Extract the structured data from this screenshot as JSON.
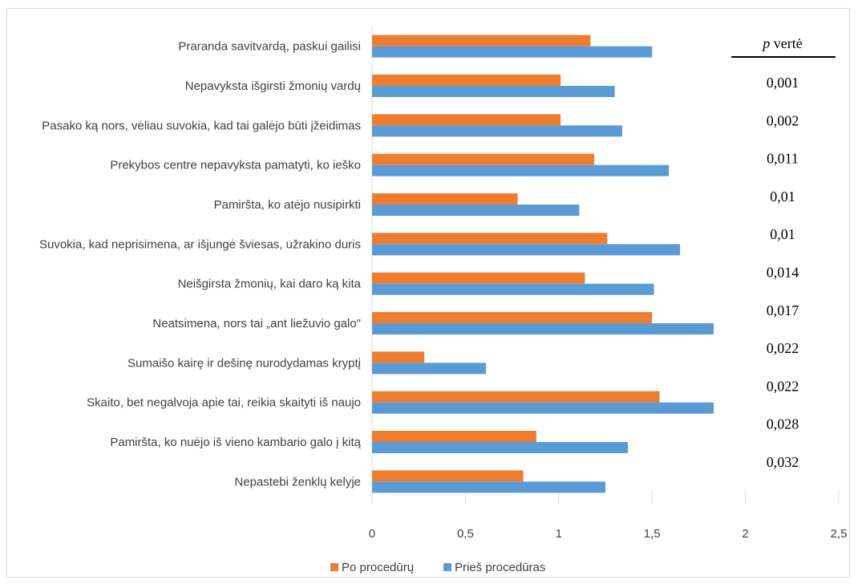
{
  "chart_data": {
    "type": "bar",
    "orientation": "horizontal",
    "categories": [
      "Praranda savitvardą, paskui gailisi",
      "Nepavyksta išgirsti žmonių vardų",
      "Pasako ką nors, vėliau suvokia, kad tai galėjo būti įžeidimas",
      "Prekybos centre nepavyksta pamatyti, ko ieško",
      "Pamiršta, ko atėjo nusipirkti",
      "Suvokia, kad neprisimena, ar išjungė šviesas, užrakino duris",
      "Neišgirsta žmonių, kai daro ką kita",
      "Neatsimena, nors tai „ant liežuvio galo\"",
      "Sumaišo kairę ir dešinę nurodydamas kryptį",
      "Skaito, bet negalvoja apie tai, reikia skaityti iš naujo",
      "Pamiršta, ko nuėjo iš vieno kambario galo į kitą",
      "Nepastebi ženklų kelyje"
    ],
    "series": [
      {
        "name": "Po procedūrų",
        "color": "#ED7D31",
        "values": [
          1.17,
          1.01,
          1.01,
          1.19,
          0.78,
          1.26,
          1.14,
          1.5,
          0.28,
          1.54,
          0.88,
          0.81
        ]
      },
      {
        "name": "Prieš procedūras",
        "color": "#5B9BD5",
        "values": [
          1.5,
          1.3,
          1.34,
          1.59,
          1.11,
          1.65,
          1.51,
          1.83,
          0.61,
          1.83,
          1.37,
          1.25
        ]
      }
    ],
    "xlim": [
      0,
      2.5
    ],
    "xticks": [
      "0",
      "0,5",
      "1",
      "1,5",
      "2",
      "2,5"
    ],
    "grid": true,
    "legend": "bottom"
  },
  "p_table": {
    "header_italic": "p",
    "header_rest": " vertė",
    "values": [
      "0,001",
      "0,002",
      "0,011",
      "0,01",
      "0,01",
      "0,014",
      "0,017",
      "0,022",
      "0,022",
      "0,028",
      "0,032"
    ]
  }
}
